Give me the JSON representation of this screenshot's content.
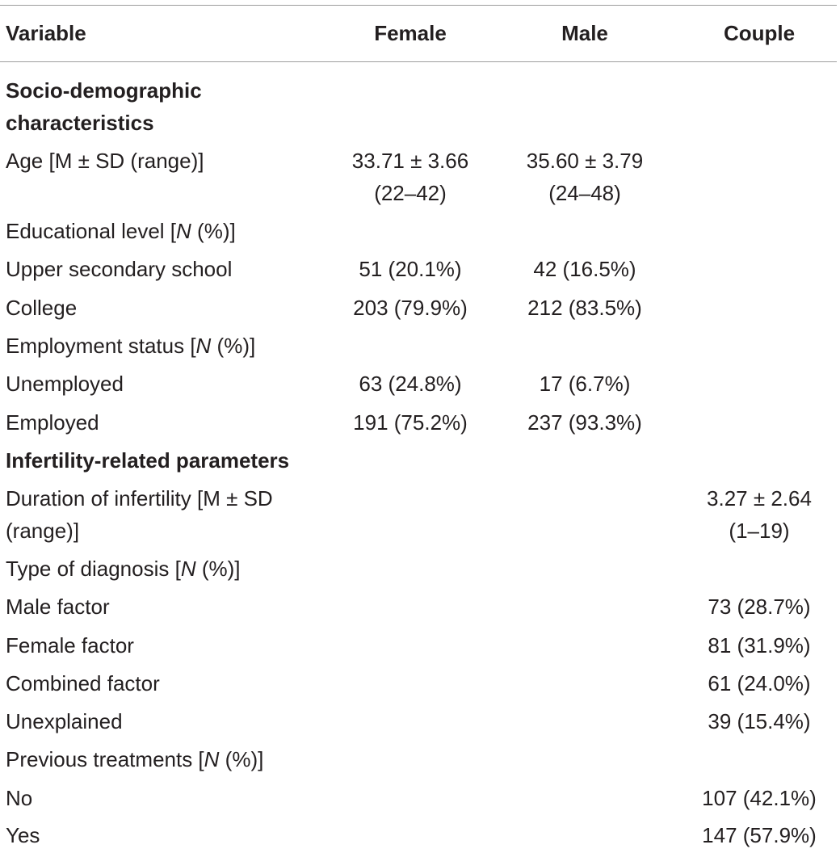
{
  "header": {
    "variable": "Variable",
    "female": "Female",
    "male": "Male",
    "couple": "Couple"
  },
  "sections": {
    "socio": {
      "title_line1": "Socio-demographic",
      "title_line2": "characteristics"
    },
    "infertility": {
      "title": "Infertility-related parameters"
    }
  },
  "rows": {
    "age": {
      "label": "Age [M ± SD (range)]",
      "female_line1": "33.71 ± 3.66",
      "female_line2": "(22–42)",
      "male_line1": "35.60 ± 3.79",
      "male_line2": "(24–48)"
    },
    "education": {
      "label_pre": "Educational level [",
      "label_n": "N",
      "label_post": " (%)]"
    },
    "upper_secondary": {
      "label": "Upper secondary school",
      "female": "51 (20.1%)",
      "male": "42 (16.5%)"
    },
    "college": {
      "label": "College",
      "female": "203 (79.9%)",
      "male": "212 (83.5%)"
    },
    "employment": {
      "label_pre": "Employment status [",
      "label_n": "N",
      "label_post": " (%)]"
    },
    "unemployed": {
      "label": "Unemployed",
      "female": "63 (24.8%)",
      "male": "17 (6.7%)"
    },
    "employed": {
      "label": "Employed",
      "female": "191 (75.2%)",
      "male": "237 (93.3%)"
    },
    "duration": {
      "label_line1": "Duration of infertility [M ± SD",
      "label_line2": "(range)]",
      "couple_line1": "3.27 ± 2.64",
      "couple_line2": "(1–19)"
    },
    "diagnosis": {
      "label_pre": "Type of diagnosis [",
      "label_n": "N",
      "label_post": " (%)]"
    },
    "male_factor": {
      "label": "Male factor",
      "couple": "73 (28.7%)"
    },
    "female_factor": {
      "label": "Female factor",
      "couple": "81 (31.9%)"
    },
    "combined_factor": {
      "label": "Combined factor",
      "couple": "61 (24.0%)"
    },
    "unexplained": {
      "label": "Unexplained",
      "couple": "39 (15.4%)"
    },
    "previous": {
      "label_pre": "Previous treatments [",
      "label_n": "N",
      "label_post": " (%)]"
    },
    "no": {
      "label": "No",
      "couple": "107 (42.1%)"
    },
    "yes": {
      "label": "Yes",
      "couple": "147 (57.9%)"
    }
  }
}
